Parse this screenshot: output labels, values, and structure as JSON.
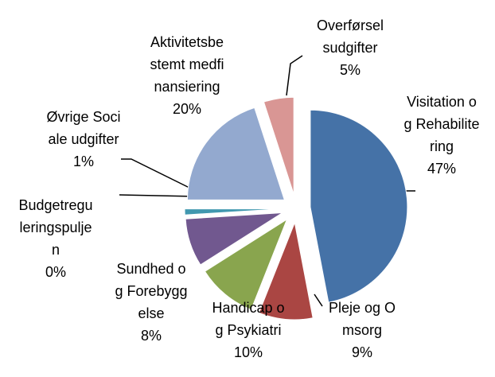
{
  "chart_data": {
    "type": "pie",
    "categories": [
      "Visitation og Rehabilitering",
      "Pleje og Omsorg",
      "Handicap og Psykiatri",
      "Sundhed og Forebyggelse",
      "Budgetreguleringspuljen",
      "Øvrige Sociale udgifter",
      "Aktivitetsbestemt medfinansiering",
      "Overførsel sudgifter"
    ],
    "values": [
      47,
      9,
      10,
      8,
      0,
      1,
      20,
      5
    ],
    "value_labels": [
      "47%",
      "9%",
      "10%",
      "8%",
      "0%",
      "1%",
      "20%",
      "5%"
    ],
    "colors": [
      "#4572a7",
      "#aa4643",
      "#89a54e",
      "#71588f",
      "#4198af",
      "#4198af",
      "#93a9cf",
      "#d99694"
    ]
  }
}
